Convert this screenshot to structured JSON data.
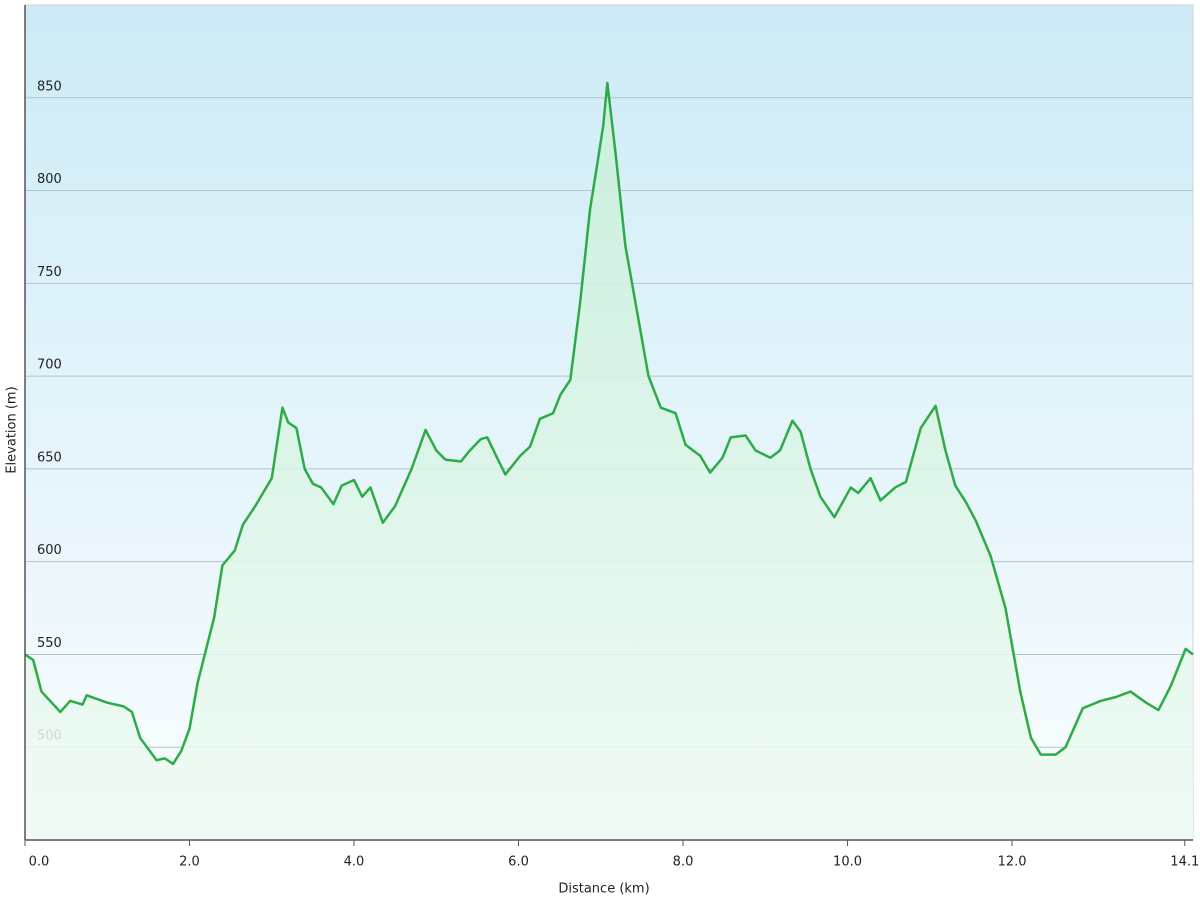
{
  "chart_data": {
    "type": "area",
    "x_label": "Distance  (km)",
    "y_label": "Elevation (m)",
    "x": [
      0,
      0.1,
      0.2,
      0.43,
      0.55,
      0.7,
      0.75,
      1.0,
      1.2,
      1.3,
      1.4,
      1.6,
      1.7,
      1.8,
      1.9,
      2.0,
      2.1,
      2.3,
      2.4,
      2.55,
      2.65,
      2.8,
      3.0,
      3.13,
      3.2,
      3.3,
      3.4,
      3.5,
      3.6,
      3.75,
      3.85,
      4.0,
      4.1,
      4.2,
      4.35,
      4.5,
      4.7,
      4.87,
      5.0,
      5.11,
      5.3,
      5.41,
      5.54,
      5.62,
      5.75,
      5.84,
      6.02,
      6.14,
      6.26,
      6.42,
      6.51,
      6.63,
      6.75,
      6.87,
      6.96,
      7.03,
      7.08,
      7.18,
      7.3,
      7.38,
      7.58,
      7.73,
      7.91,
      8.03,
      8.21,
      8.33,
      8.48,
      8.58,
      8.76,
      8.88,
      9.06,
      9.18,
      9.33,
      9.43,
      9.55,
      9.67,
      9.84,
      10.04,
      10.13,
      10.28,
      10.4,
      10.58,
      10.71,
      10.89,
      11.07,
      11.19,
      11.31,
      11.44,
      11.56,
      11.74,
      11.92,
      12.1,
      12.23,
      12.35,
      12.53,
      12.65,
      12.77,
      12.86,
      13.08,
      13.26,
      13.44,
      13.63,
      13.78,
      13.93,
      14.11,
      14.2
    ],
    "series": [
      {
        "color": "#2eab47",
        "values": [
          550,
          547,
          530,
          519,
          525,
          523,
          528,
          524,
          522,
          519,
          505,
          493,
          494,
          491,
          498,
          510,
          535,
          570,
          598,
          606,
          620,
          630,
          645,
          683,
          675,
          672,
          650,
          642,
          640,
          631,
          641,
          644,
          635,
          640,
          621,
          630,
          650,
          671,
          660,
          655,
          654,
          660,
          666,
          667,
          655,
          647,
          657,
          662,
          677,
          680,
          690,
          698,
          740,
          790,
          815,
          835,
          858,
          820,
          770,
          750,
          700,
          683,
          680,
          663,
          657,
          648,
          656,
          667,
          668,
          660,
          656,
          660,
          676,
          670,
          650,
          635,
          624,
          640,
          637,
          645,
          633,
          640,
          643,
          672,
          684,
          660,
          641,
          632,
          622,
          603,
          575,
          530,
          505,
          496,
          496,
          500,
          512,
          521,
          525,
          527,
          530,
          524,
          520,
          533,
          553,
          550
        ]
      }
    ],
    "xlim": [
      0,
      14.2
    ],
    "ylim": [
      450,
      900
    ],
    "xticks": [
      {
        "value": 0,
        "label": "0.0"
      },
      {
        "value": 2,
        "label": "2.0"
      },
      {
        "value": 4,
        "label": "4.0"
      },
      {
        "value": 6,
        "label": "6.0"
      },
      {
        "value": 8,
        "label": "8.0"
      },
      {
        "value": 10,
        "label": "10.0"
      },
      {
        "value": 12,
        "label": "12.0"
      },
      14.1
    ],
    "yticks": [
      500,
      550,
      600,
      650,
      700,
      750,
      800,
      850
    ],
    "grid": true
  }
}
